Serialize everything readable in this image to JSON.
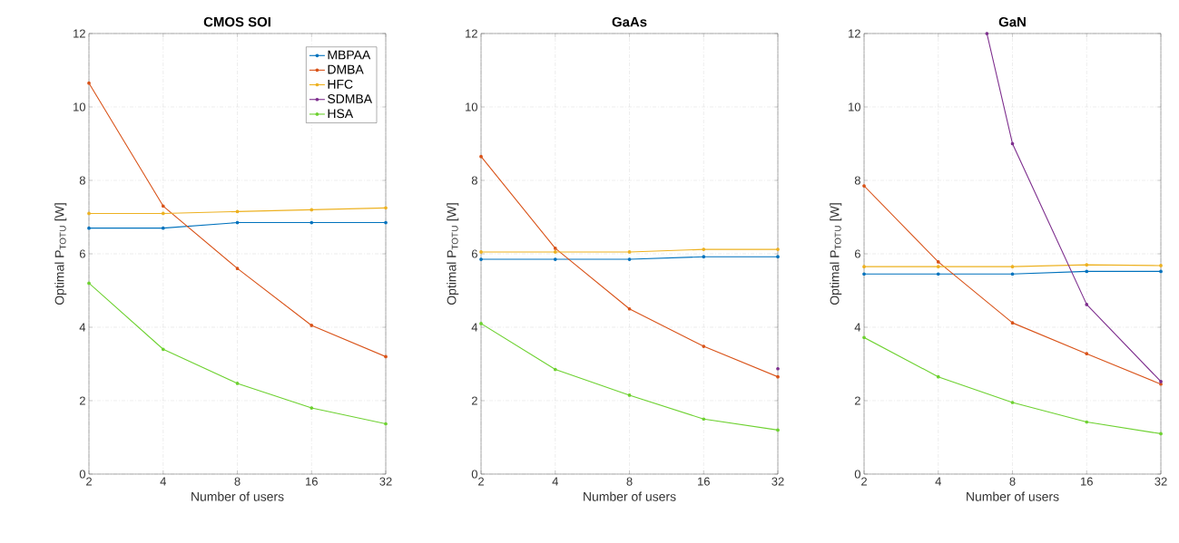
{
  "chart_data": [
    {
      "type": "line",
      "title": "CMOS SOI",
      "xlabel": "Number of users",
      "ylabel": "Optimal P$_{TOT}$$_{U}$ [W]",
      "x": [
        2,
        4,
        8,
        16,
        32
      ],
      "log": "x",
      "xlim": [
        2,
        32
      ],
      "xticks": [
        2,
        4,
        8,
        16,
        32
      ],
      "ylim": [
        0,
        12
      ],
      "yticks": [
        0,
        2,
        4,
        6,
        8,
        10,
        12
      ],
      "grid": true,
      "legend": "top right",
      "marker": "circle",
      "series": [
        {
          "name": "MBPAA",
          "color": "#0072bd",
          "values": [
            6.7,
            6.7,
            6.85,
            6.85,
            6.85
          ]
        },
        {
          "name": "DMBA",
          "color": "#d95319",
          "values": [
            10.65,
            7.3,
            5.6,
            4.05,
            3.2
          ]
        },
        {
          "name": "HFC",
          "color": "#edb120",
          "values": [
            7.1,
            7.1,
            7.15,
            7.2,
            7.25
          ]
        },
        {
          "name": "SDMBA",
          "color": "#7e2f8e",
          "values": [
            null,
            null,
            null,
            null,
            null
          ]
        },
        {
          "name": "HSA",
          "color": "#6dd130",
          "values": [
            5.2,
            3.4,
            2.47,
            1.8,
            1.37
          ]
        }
      ]
    },
    {
      "type": "line",
      "title": "GaAs",
      "xlabel": "Number of users",
      "ylabel": "Optimal P$_{TOT}$$_{U}$ [W]",
      "x": [
        2,
        4,
        8,
        16,
        32
      ],
      "log": "x",
      "xlim": [
        2,
        32
      ],
      "xticks": [
        2,
        4,
        8,
        16,
        32
      ],
      "ylim": [
        0,
        12
      ],
      "yticks": [
        0,
        2,
        4,
        6,
        8,
        10,
        12
      ],
      "grid": true,
      "marker": "circle",
      "series": [
        {
          "color": "#0072bd",
          "values": [
            5.85,
            5.85,
            5.85,
            5.92,
            5.92
          ]
        },
        {
          "color": "#d95319",
          "values": [
            8.65,
            6.15,
            4.5,
            3.48,
            2.65
          ]
        },
        {
          "color": "#edb120",
          "values": [
            6.05,
            6.05,
            6.05,
            6.12,
            6.12
          ]
        },
        {
          "color": "#7e2f8e",
          "values": [
            null,
            null,
            null,
            null,
            2.87
          ]
        },
        {
          "color": "#6dd130",
          "values": [
            4.1,
            2.85,
            2.15,
            1.5,
            1.2
          ]
        }
      ]
    },
    {
      "type": "line",
      "title": "GaN",
      "xlabel": "Number of users",
      "ylabel": "Optimal P$_{TOT}$$_{U}$ [W]",
      "x": [
        2,
        4,
        8,
        16,
        32
      ],
      "log": "x",
      "xlim": [
        2,
        32
      ],
      "xticks": [
        2,
        4,
        8,
        16,
        32
      ],
      "ylim": [
        0,
        12
      ],
      "yticks": [
        0,
        2,
        4,
        6,
        8,
        10,
        12
      ],
      "grid": true,
      "marker": "circle",
      "series": [
        {
          "color": "#0072bd",
          "values": [
            5.45,
            5.45,
            5.45,
            5.52,
            5.52
          ]
        },
        {
          "color": "#d95319",
          "values": [
            7.85,
            5.78,
            4.12,
            3.28,
            2.45
          ]
        },
        {
          "color": "#edb120",
          "values": [
            5.65,
            5.65,
            5.65,
            5.7,
            5.68
          ]
        },
        {
          "color": "#7e2f8e",
          "x": [
            6.3,
            8,
            16,
            32
          ],
          "values": [
            12,
            9.0,
            4.62,
            2.52
          ]
        },
        {
          "color": "#6dd130",
          "values": [
            3.72,
            2.65,
            1.95,
            1.42,
            1.1
          ]
        }
      ]
    }
  ]
}
